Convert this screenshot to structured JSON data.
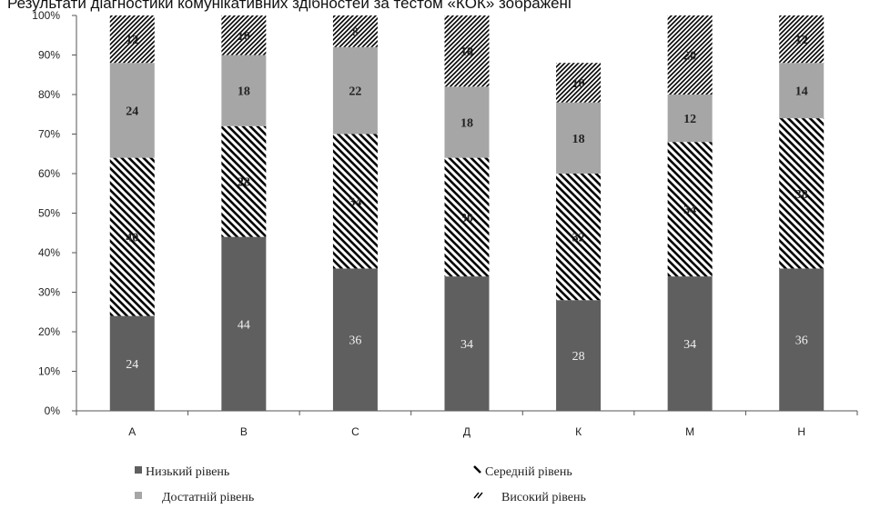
{
  "chart_data": {
    "type": "bar",
    "stacked": true,
    "title": "Результати діагностики комунікативних здібностей за тестом «КОК» зображені",
    "categories": [
      "А",
      "В",
      "С",
      "Д",
      "К",
      "М",
      "Н"
    ],
    "ylim": [
      0,
      100
    ],
    "yticks": [
      "0%",
      "10%",
      "20%",
      "30%",
      "40%",
      "50%",
      "60%",
      "70%",
      "80%",
      "90%",
      "100%"
    ],
    "grid": false,
    "legend_position": "bottom",
    "series": [
      {
        "name": "Низький рівень",
        "values": [
          24,
          44,
          36,
          34,
          28,
          34,
          36
        ],
        "labels": [
          "24",
          "44",
          "36",
          "34",
          "28",
          "34",
          "36"
        ],
        "color": "#5f5f5f",
        "pattern": "solid"
      },
      {
        "name": "Середній рівень",
        "values": [
          40,
          28,
          34,
          30,
          32,
          34,
          38
        ],
        "labels": [
          "40",
          "28",
          "34",
          "30",
          "32",
          "34",
          "38"
        ],
        "color": "#000000",
        "pattern": "backslash-stripes"
      },
      {
        "name": "Достатній рівень",
        "values": [
          24,
          18,
          22,
          18,
          18,
          12,
          14
        ],
        "labels": [
          "24",
          "18",
          "22",
          "18",
          "18",
          "12",
          "14"
        ],
        "color": "#a6a6a6",
        "pattern": "solid"
      },
      {
        "name": "Високий рівень",
        "values": [
          12,
          10,
          8,
          18,
          10,
          20,
          12
        ],
        "labels": [
          "12",
          "10",
          "8",
          "18",
          "10",
          "20",
          "12"
        ],
        "color": "#000000",
        "pattern": "slash-stripes"
      }
    ]
  },
  "legend": {
    "items": [
      {
        "name": "Низький рівень"
      },
      {
        "name": "Середній рівень"
      },
      {
        "name": "Достатній рівень"
      },
      {
        "name": "Високий  рівень"
      }
    ]
  }
}
